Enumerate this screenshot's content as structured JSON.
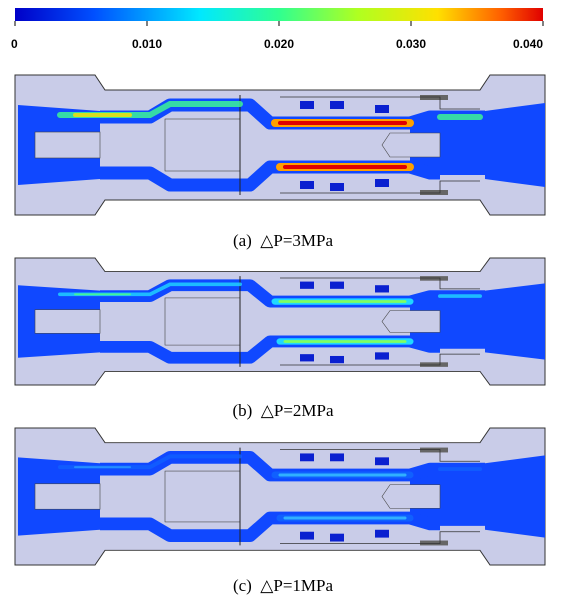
{
  "colorbar": {
    "range": [
      0,
      0.04
    ],
    "ticks": [
      0,
      {
        "value": 0.01,
        "label": "0.010"
      },
      {
        "value": 0.02,
        "label": "0.020"
      },
      {
        "value": 0.03,
        "label": "0.030"
      },
      {
        "value": 0.04,
        "label": "0.040"
      }
    ]
  },
  "panels": [
    {
      "caption": "(a)  △P=3MPa"
    },
    {
      "caption": "(b)  △P=2MPa"
    },
    {
      "caption": "(c)  △P=1MPa"
    }
  ]
}
